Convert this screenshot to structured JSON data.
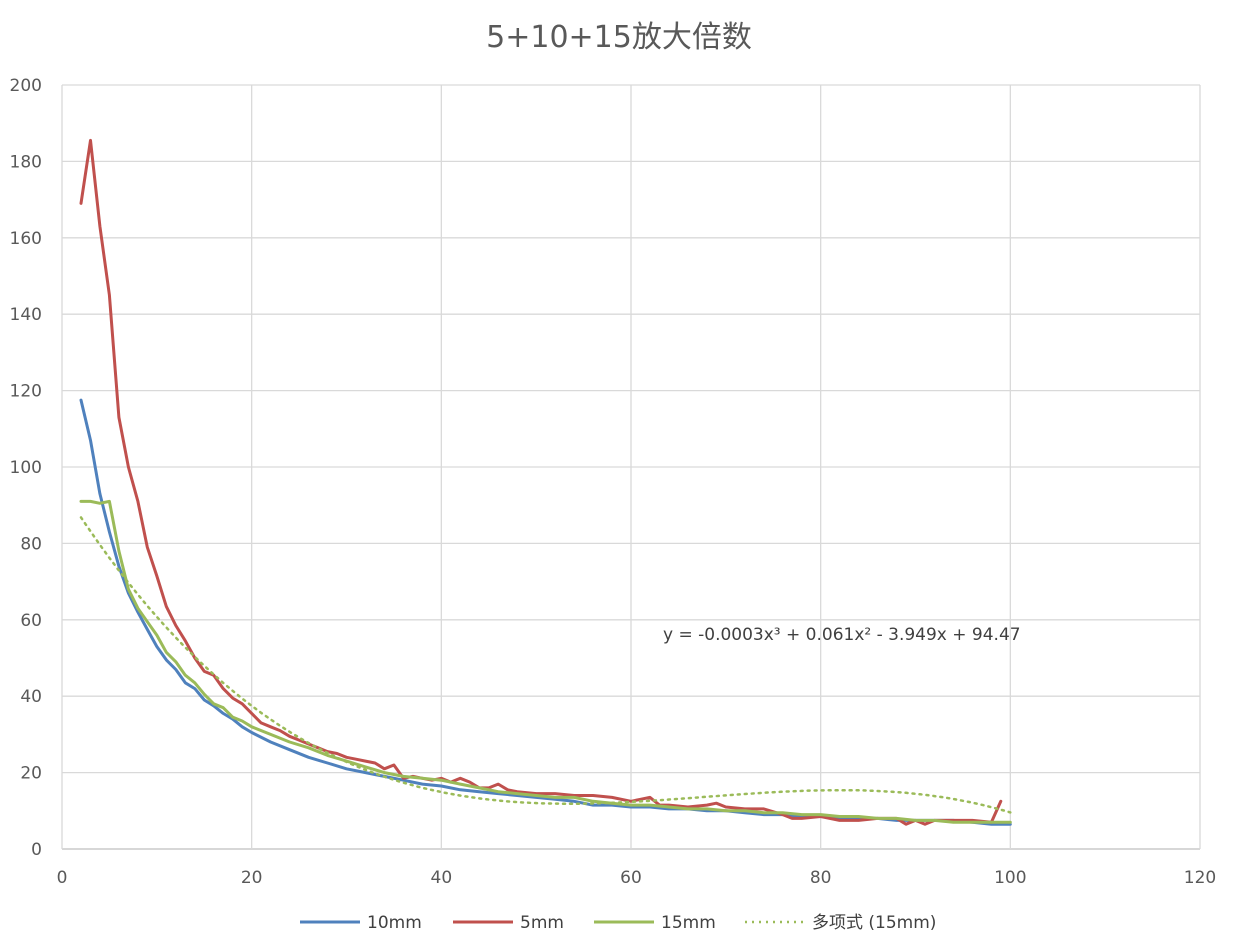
{
  "chart_data": {
    "type": "line",
    "title": "5+10+15放大倍数",
    "xlabel": "",
    "ylabel": "",
    "xlim": [
      0,
      120
    ],
    "ylim": [
      0,
      200
    ],
    "xticks": [
      0,
      20,
      40,
      60,
      80,
      100,
      120
    ],
    "yticks": [
      0,
      20,
      40,
      60,
      80,
      100,
      120,
      140,
      160,
      180,
      200
    ],
    "grid": true,
    "legend_position": "bottom",
    "series": [
      {
        "name": "10mm",
        "color": "#4f81bd",
        "style": "solid",
        "x": [
          2,
          3,
          4,
          5,
          6,
          7,
          8,
          9,
          10,
          11,
          12,
          13,
          14,
          15,
          16,
          17,
          18,
          19,
          20,
          22,
          24,
          26,
          28,
          30,
          32,
          34,
          36,
          38,
          40,
          42,
          44,
          46,
          48,
          50,
          52,
          54,
          56,
          58,
          60,
          62,
          64,
          66,
          68,
          70,
          72,
          74,
          76,
          78,
          80,
          82,
          84,
          86,
          88,
          90,
          92,
          94,
          96,
          98,
          100
        ],
        "y": [
          117.5,
          107,
          93,
          83,
          74,
          67,
          62,
          57.5,
          53,
          49.5,
          47,
          43.5,
          42,
          39,
          37.5,
          35.5,
          34,
          32,
          30.5,
          28,
          26,
          24,
          22.5,
          21,
          20,
          19,
          18,
          17,
          16.5,
          15.5,
          15,
          14.5,
          14,
          13.5,
          13,
          12.5,
          11.5,
          11.5,
          11,
          11,
          10.5,
          10.5,
          10,
          10,
          9.5,
          9,
          9,
          8.5,
          8.5,
          8,
          8,
          8,
          7.5,
          7.5,
          7.5,
          7.5,
          7,
          6.5,
          6.5
        ]
      },
      {
        "name": "5mm",
        "color": "#c0504d",
        "style": "solid",
        "x": [
          2,
          3,
          4,
          5,
          6,
          7,
          8,
          9,
          10,
          11,
          12,
          13,
          14,
          15,
          16,
          17,
          18,
          19,
          20,
          21,
          22,
          23,
          24,
          25,
          26,
          27,
          28,
          29,
          30,
          31,
          32,
          33,
          34,
          35,
          36,
          37,
          38,
          39,
          40,
          41,
          42,
          43,
          44,
          45,
          46,
          47,
          48,
          50,
          52,
          54,
          56,
          58,
          60,
          61,
          62,
          63,
          64,
          66,
          68,
          69,
          70,
          72,
          74,
          76,
          77,
          78,
          80,
          82,
          84,
          86,
          88,
          89,
          90,
          91,
          92,
          94,
          96,
          98,
          99
        ],
        "y": [
          169,
          185.5,
          163,
          145,
          113,
          100,
          91,
          79,
          71.5,
          63.5,
          58.5,
          54.5,
          50,
          46.5,
          45.5,
          42,
          39.5,
          38,
          35.5,
          33,
          32,
          31,
          29.5,
          28.5,
          27.5,
          26.5,
          25.5,
          25,
          24,
          23.5,
          23,
          22.5,
          21,
          22,
          18.5,
          19,
          18.5,
          18,
          18.5,
          17.5,
          18.5,
          17.5,
          16,
          16,
          17,
          15.5,
          15,
          14.5,
          14.5,
          14,
          14,
          13.5,
          12.5,
          13,
          13.5,
          11.5,
          11.5,
          11,
          11.5,
          12,
          11,
          10.5,
          10.5,
          9,
          8,
          8,
          8.5,
          7.5,
          7.5,
          8,
          8,
          6.5,
          7.5,
          6.5,
          7.5,
          7.5,
          7.5,
          7,
          12.5
        ]
      },
      {
        "name": "15mm",
        "color": "#9bbb59",
        "style": "solid",
        "x": [
          2,
          3,
          4,
          5,
          6,
          7,
          8,
          9,
          10,
          11,
          12,
          13,
          14,
          15,
          16,
          17,
          18,
          19,
          20,
          22,
          24,
          26,
          28,
          30,
          32,
          34,
          36,
          38,
          40,
          42,
          44,
          46,
          48,
          50,
          52,
          54,
          56,
          58,
          60,
          62,
          64,
          66,
          68,
          70,
          72,
          74,
          76,
          78,
          80,
          82,
          84,
          86,
          88,
          90,
          92,
          94,
          96,
          98,
          100
        ],
        "y": [
          91,
          91,
          90.5,
          91,
          78,
          68,
          63,
          59.5,
          56,
          51.5,
          49,
          45.5,
          43.5,
          40.5,
          38,
          37,
          34.5,
          33.5,
          32,
          30,
          28,
          26.5,
          24.5,
          23,
          21.5,
          20,
          19,
          18.5,
          18,
          17,
          16,
          15,
          14.5,
          14,
          13.5,
          13.5,
          12.5,
          12,
          11.5,
          11.5,
          11,
          10.5,
          10.5,
          10,
          10,
          9.5,
          9.5,
          9,
          9,
          8.5,
          8.5,
          8,
          8,
          7.5,
          7.5,
          7,
          7,
          7,
          7
        ]
      },
      {
        "name": "多项式 (15mm)",
        "color": "#9bbb59",
        "style": "dotted",
        "equation": "y = -0.0003x³ + 0.061x² - 3.949x + 94.47",
        "coefficients": [
          -0.0003,
          0.061,
          -3.949,
          94.47
        ],
        "x_range": [
          2,
          100
        ]
      }
    ]
  },
  "legend": [
    {
      "label": "10mm"
    },
    {
      "label": "5mm"
    },
    {
      "label": "15mm"
    },
    {
      "label": "多项式 (15mm)"
    }
  ]
}
